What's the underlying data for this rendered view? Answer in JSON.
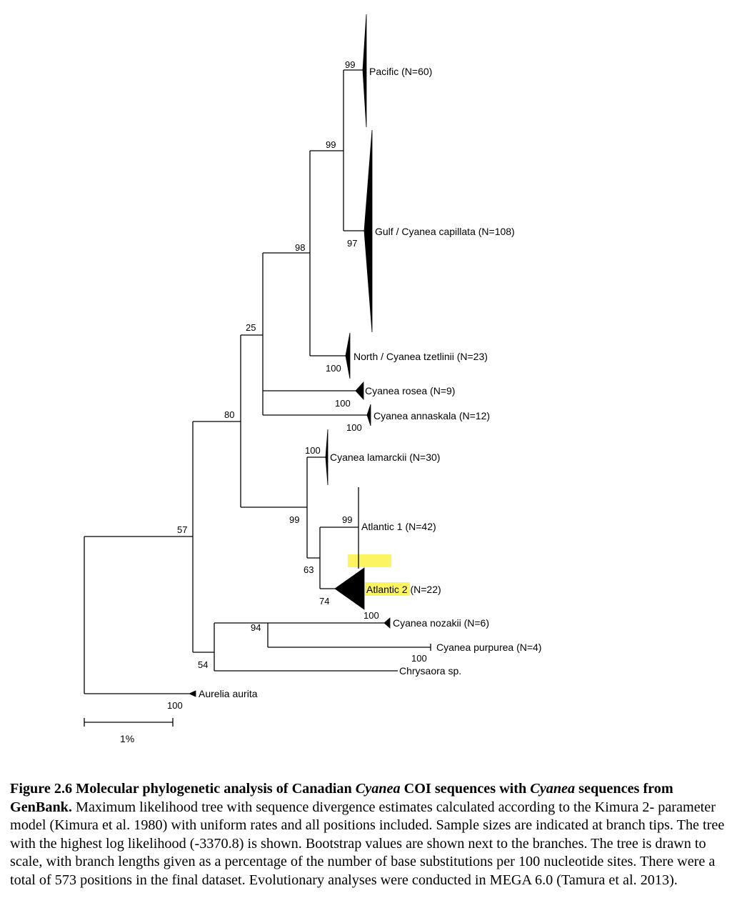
{
  "tree": {
    "taxa": {
      "pacific": "Pacific (N=60)",
      "gulf": "Gulf / Cyanea capillata (N=108)",
      "north": "North / Cyanea tzetlinii (N=23)",
      "rosea": "Cyanea rosea (N=9)",
      "annaskala": "Cyanea annaskala (N=12)",
      "lamarckii": "Cyanea lamarckii (N=30)",
      "atlantic1": "Atlantic 1 (N=42)",
      "atlantic2_name": "Atlantic 2",
      "atlantic2_count": " (N=22)",
      "nozakii": "Cyanea nozakii (N=6)",
      "purpurea": "Cyanea purpurea (N=4)",
      "chrysaora": "Chrysaora sp.",
      "aurelia": "Aurelia aurita"
    },
    "bootstrap": {
      "pacific": "99",
      "pacific_gulf": "99",
      "gulf": "97",
      "upper_clade": "98",
      "north": "100",
      "node_25": "25",
      "rosea": "100",
      "annaskala": "100",
      "node_80": "80",
      "lamarckii": "100",
      "node_99": "99",
      "atlantic1": "99",
      "node_63": "63",
      "atlantic2": "74",
      "atlantic2_tip": "100",
      "node_57": "57",
      "node_94": "94",
      "nozakii": "100",
      "purpurea": "100",
      "node_54": "54",
      "aurelia": "100"
    },
    "scale_label": "1%",
    "highlight_color": "#fcf55f"
  },
  "caption": {
    "bold_1": "Figure 2.6 Molecular phylogenetic analysis of Canadian ",
    "bold_italic_1": "Cyanea",
    "bold_2": " COI sequences with ",
    "bold_italic_2": "Cyanea",
    "bold_3": " sequences from GenBank.",
    "body": " Maximum likelihood tree with sequence divergence estimates calculated according to the Kimura 2- parameter model (Kimura et al. 1980) with uniform rates and all positions included. Sample sizes are indicated at branch tips. The tree with the highest log likelihood (-3370.8) is shown. Bootstrap values are shown next to the branches. The tree is drawn to scale, with branch lengths given as a percentage of the number of base substitutions per 100 nucleotide sites. There were a total of 573 positions in the final dataset. Evolutionary analyses were conducted in MEGA 6.0 (Tamura et al. 2013)."
  }
}
